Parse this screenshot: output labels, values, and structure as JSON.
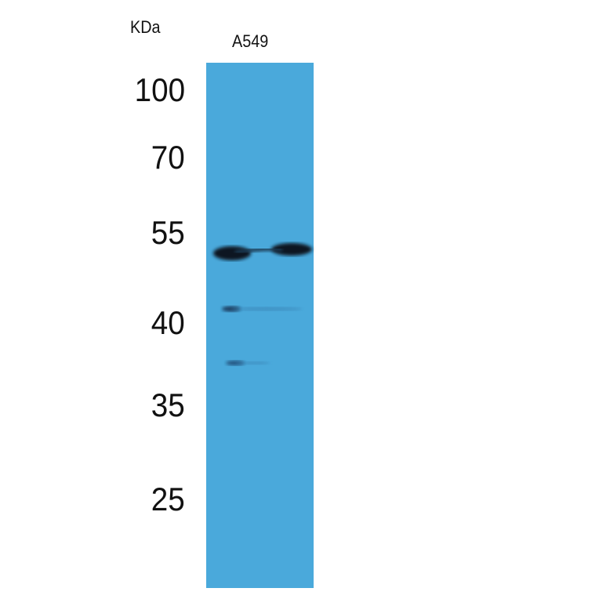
{
  "unit_label": "KDa",
  "lanes": [
    {
      "label": "A549"
    }
  ],
  "markers": [
    "100",
    "70",
    "55",
    "40",
    "35",
    "25"
  ],
  "colors": {
    "membrane": "#4aa9db",
    "band": "#101820"
  }
}
